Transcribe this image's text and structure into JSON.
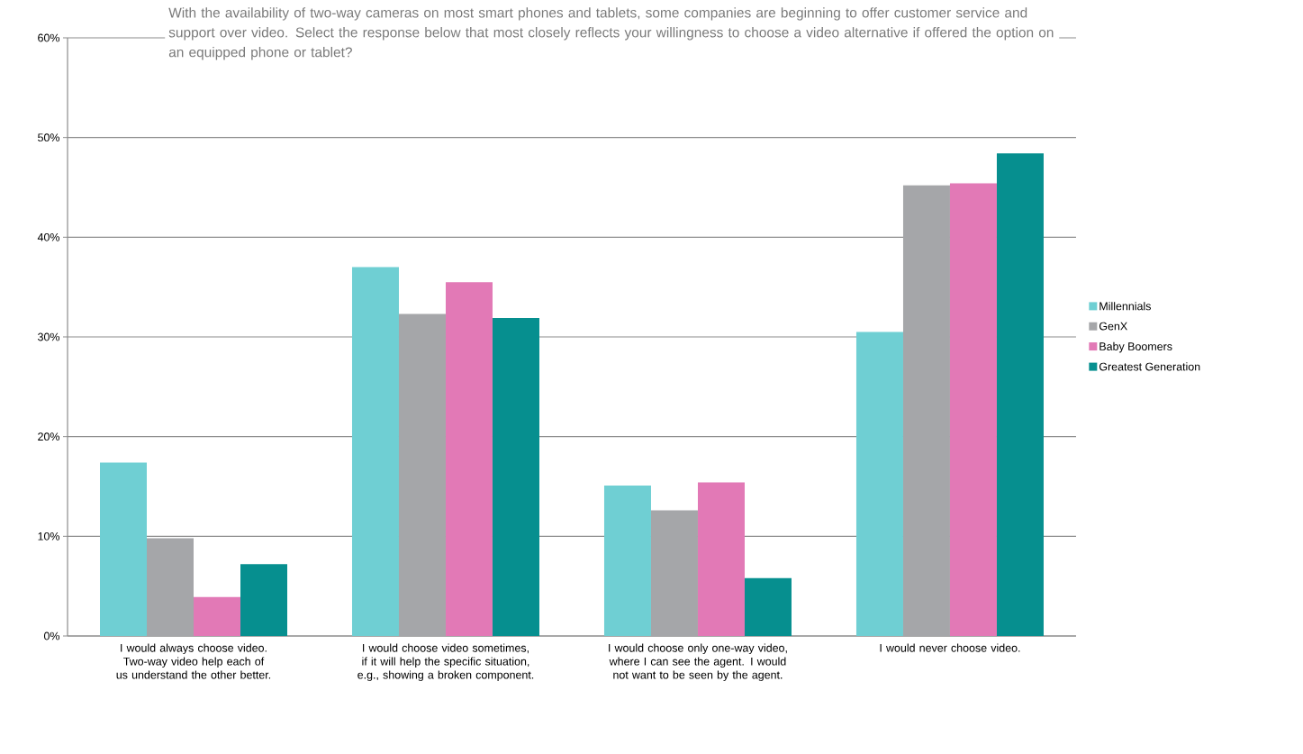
{
  "chart_data": {
    "type": "bar",
    "title": "With the availability of two-way cameras on most smart phones and tablets, some companies are beginning to offer customer service and support over video. Select the response below that most closely reflects your willingness to choose a video alternative if offered the option on an equipped phone or tablet?",
    "categories": [
      "I would always choose video. Two-way video help each of us understand the other better.",
      "I would choose video sometimes, if it will help the specific situation, e.g., showing a broken component.",
      "I would choose only one-way video, where I can see the agent.  I would not want to be seen by the agent.",
      "I would never choose video."
    ],
    "series": [
      {
        "name": "Millennials",
        "color": "#6fcfd3",
        "values": [
          17.4,
          37.0,
          15.1,
          30.5
        ]
      },
      {
        "name": "GenX",
        "color": "#a5a6a9",
        "values": [
          9.8,
          32.3,
          12.6,
          45.2
        ]
      },
      {
        "name": "Baby Boomers",
        "color": "#e279b6",
        "values": [
          3.9,
          35.5,
          15.4,
          45.4
        ]
      },
      {
        "name": "Greatest Generation",
        "color": "#068f8f",
        "values": [
          7.2,
          31.9,
          5.8,
          48.4
        ]
      }
    ],
    "ylim": [
      0,
      60
    ],
    "yticks": [
      {
        "value": 0,
        "label": "0%"
      },
      {
        "value": 10,
        "label": "10%"
      },
      {
        "value": 20,
        "label": "20%"
      },
      {
        "value": 30,
        "label": "30%"
      },
      {
        "value": 40,
        "label": "40%"
      },
      {
        "value": 50,
        "label": "50%"
      },
      {
        "value": 60,
        "label": "60%"
      }
    ],
    "grid": "y",
    "legend": "right"
  }
}
